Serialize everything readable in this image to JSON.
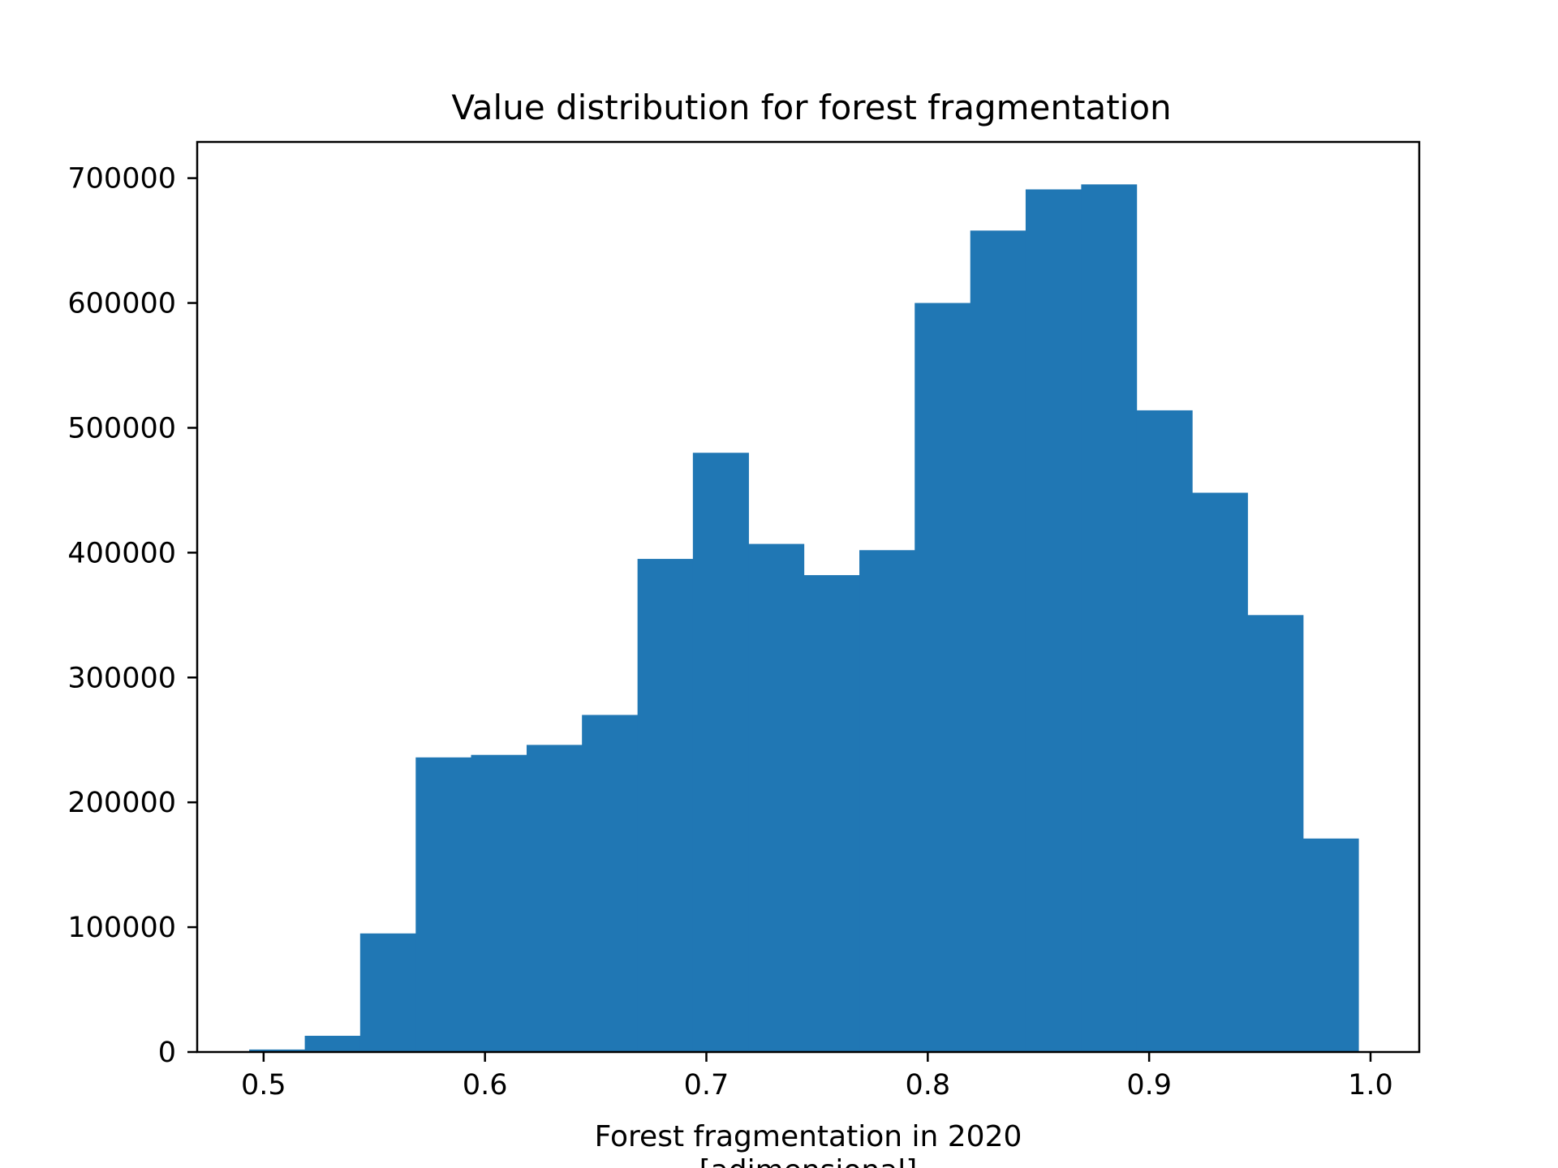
{
  "chart_data": {
    "type": "bar",
    "title": "Value distribution for forest fragmentation",
    "xlabel_lines": [
      "Forest fragmentation in 2020",
      "[adimensional]"
    ],
    "ylabel": "",
    "xlim": [
      0.47,
      1.022
    ],
    "ylim": [
      0,
      729000
    ],
    "x_ticks": [
      0.5,
      0.6,
      0.7,
      0.8,
      0.9,
      1.0
    ],
    "x_tick_labels": [
      "0.5",
      "0.6",
      "0.7",
      "0.8",
      "0.9",
      "1.0"
    ],
    "y_ticks": [
      0,
      100000,
      200000,
      300000,
      400000,
      500000,
      600000,
      700000
    ],
    "y_tick_labels": [
      "0",
      "100000",
      "200000",
      "300000",
      "400000",
      "500000",
      "600000",
      "700000"
    ],
    "bin_edges": [
      0.4935,
      0.5186,
      0.5436,
      0.5687,
      0.5937,
      0.6188,
      0.6438,
      0.6689,
      0.6939,
      0.719,
      0.744,
      0.7691,
      0.7941,
      0.8192,
      0.8442,
      0.8693,
      0.8943,
      0.9194,
      0.9444,
      0.9695,
      0.9945
    ],
    "values": [
      2000,
      13000,
      95000,
      236000,
      238000,
      246000,
      270000,
      395000,
      480000,
      407000,
      382000,
      402000,
      600000,
      658000,
      691000,
      695000,
      514000,
      448000,
      350000,
      171000
    ],
    "grid": false,
    "legend": "none",
    "colors": {
      "bar": "#2077b4",
      "axes": "#000000",
      "background": "#ffffff"
    }
  }
}
